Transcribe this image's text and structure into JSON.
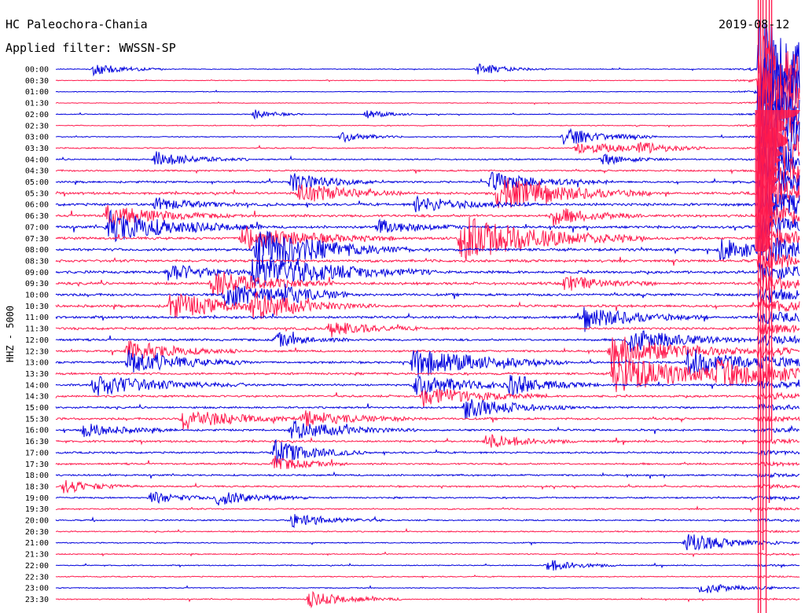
{
  "header": {
    "station": "HC Paleochora-Chania",
    "filter": "Applied filter: WWSSN-SP",
    "date": "2019-08-12"
  },
  "channel_label": "HHZ - 5000",
  "colors": {
    "blue": "#0000dd",
    "red": "#ff1a4d",
    "text": "#000000"
  },
  "chart_data": {
    "type": "line",
    "title": "",
    "ylabel": "HHZ - 5000",
    "row_labels": [
      "00:00",
      "00:30",
      "01:00",
      "01:30",
      "02:00",
      "02:30",
      "03:00",
      "03:30",
      "04:00",
      "04:30",
      "05:00",
      "05:30",
      "06:00",
      "06:30",
      "07:00",
      "07:30",
      "08:00",
      "08:30",
      "09:00",
      "09:30",
      "10:00",
      "10:30",
      "11:00",
      "11:30",
      "12:00",
      "12:30",
      "13:00",
      "13:30",
      "14:00",
      "14:30",
      "15:00",
      "15:30",
      "16:00",
      "16:30",
      "17:00",
      "17:30",
      "18:00",
      "18:30",
      "19:00",
      "19:30",
      "20:00",
      "20:30",
      "21:00",
      "21:30",
      "22:00",
      "22:30",
      "23:00",
      "23:30"
    ],
    "row_colors_cycle": [
      "blue",
      "red"
    ],
    "row_noise_level": [
      0.18,
      0.15,
      0.16,
      0.15,
      0.2,
      0.2,
      0.22,
      0.3,
      0.32,
      0.38,
      0.45,
      0.55,
      0.6,
      0.6,
      0.62,
      0.6,
      0.62,
      0.6,
      0.6,
      0.6,
      0.58,
      0.58,
      0.55,
      0.55,
      0.5,
      0.5,
      0.5,
      0.5,
      0.48,
      0.48,
      0.45,
      0.5,
      0.45,
      0.45,
      0.42,
      0.42,
      0.4,
      0.38,
      0.35,
      0.32,
      0.32,
      0.28,
      0.26,
      0.25,
      0.24,
      0.24,
      0.22,
      0.25
    ],
    "events": [
      {
        "row": 0,
        "minute": 1.5,
        "amp": 8,
        "dur": 1.2
      },
      {
        "row": 0,
        "minute": 17,
        "amp": 7,
        "dur": 1.2
      },
      {
        "row": 4,
        "minute": 8,
        "amp": 6,
        "dur": 0.8
      },
      {
        "row": 4,
        "minute": 12.5,
        "amp": 6,
        "dur": 0.8
      },
      {
        "row": 6,
        "minute": 20.5,
        "amp": 12,
        "dur": 1.5
      },
      {
        "row": 6,
        "minute": 11.5,
        "amp": 7,
        "dur": 1
      },
      {
        "row": 7,
        "minute": 21,
        "amp": 8,
        "dur": 2
      },
      {
        "row": 7,
        "minute": 23.5,
        "amp": 6,
        "dur": 1.2
      },
      {
        "row": 8,
        "minute": 4,
        "amp": 10,
        "dur": 1.5
      },
      {
        "row": 8,
        "minute": 22,
        "amp": 7,
        "dur": 1.2
      },
      {
        "row": 10,
        "minute": 9.5,
        "amp": 12,
        "dur": 1.5
      },
      {
        "row": 10,
        "minute": 17.5,
        "amp": 12,
        "dur": 2
      },
      {
        "row": 11,
        "minute": 17.8,
        "amp": 22,
        "dur": 2.5
      },
      {
        "row": 11,
        "minute": 9.8,
        "amp": 14,
        "dur": 1.8
      },
      {
        "row": 12,
        "minute": 14.5,
        "amp": 10,
        "dur": 2
      },
      {
        "row": 12,
        "minute": 4,
        "amp": 8,
        "dur": 1.5
      },
      {
        "row": 13,
        "minute": 2,
        "amp": 14,
        "dur": 2
      },
      {
        "row": 13,
        "minute": 20,
        "amp": 12,
        "dur": 1.5
      },
      {
        "row": 14,
        "minute": 2.1,
        "amp": 20,
        "dur": 2.5
      },
      {
        "row": 14,
        "minute": 13,
        "amp": 9,
        "dur": 1.5
      },
      {
        "row": 15,
        "minute": 16.3,
        "amp": 30,
        "dur": 3
      },
      {
        "row": 15,
        "minute": 7.5,
        "amp": 16,
        "dur": 2.5
      },
      {
        "row": 16,
        "minute": 8.1,
        "amp": 28,
        "dur": 2.5
      },
      {
        "row": 16,
        "minute": 26.8,
        "amp": 14,
        "dur": 1.8
      },
      {
        "row": 18,
        "minute": 7.9,
        "amp": 24,
        "dur": 3
      },
      {
        "row": 18,
        "minute": 4.5,
        "amp": 12,
        "dur": 1.5
      },
      {
        "row": 19,
        "minute": 6.3,
        "amp": 18,
        "dur": 2
      },
      {
        "row": 19,
        "minute": 20.5,
        "amp": 10,
        "dur": 1.5
      },
      {
        "row": 20,
        "minute": 6.8,
        "amp": 16,
        "dur": 2
      },
      {
        "row": 20,
        "minute": 9,
        "amp": 10,
        "dur": 1.2
      },
      {
        "row": 21,
        "minute": 4.6,
        "amp": 18,
        "dur": 2
      },
      {
        "row": 21,
        "minute": 7.9,
        "amp": 16,
        "dur": 2
      },
      {
        "row": 22,
        "minute": 21.3,
        "amp": 14,
        "dur": 2
      },
      {
        "row": 23,
        "minute": 11,
        "amp": 10,
        "dur": 1.5
      },
      {
        "row": 24,
        "minute": 23.1,
        "amp": 16,
        "dur": 2
      },
      {
        "row": 24,
        "minute": 8.9,
        "amp": 9,
        "dur": 1.2
      },
      {
        "row": 25,
        "minute": 2.9,
        "amp": 14,
        "dur": 1.8
      },
      {
        "row": 25,
        "minute": 22.4,
        "amp": 22,
        "dur": 2.5
      },
      {
        "row": 26,
        "minute": 2.9,
        "amp": 16,
        "dur": 2
      },
      {
        "row": 26,
        "minute": 14.4,
        "amp": 20,
        "dur": 2.5
      },
      {
        "row": 26,
        "minute": 25.5,
        "amp": 18,
        "dur": 2
      },
      {
        "row": 27,
        "minute": 22.5,
        "amp": 26,
        "dur": 3
      },
      {
        "row": 27,
        "minute": 26.7,
        "amp": 14,
        "dur": 1.8
      },
      {
        "row": 28,
        "minute": 1.5,
        "amp": 14,
        "dur": 2.5
      },
      {
        "row": 28,
        "minute": 14.5,
        "amp": 14,
        "dur": 2
      },
      {
        "row": 28,
        "minute": 18.3,
        "amp": 12,
        "dur": 1.5
      },
      {
        "row": 29,
        "minute": 14.8,
        "amp": 14,
        "dur": 2
      },
      {
        "row": 30,
        "minute": 16.5,
        "amp": 14,
        "dur": 1.8
      },
      {
        "row": 31,
        "minute": 5.1,
        "amp": 14,
        "dur": 2
      },
      {
        "row": 31,
        "minute": 10,
        "amp": 10,
        "dur": 2
      },
      {
        "row": 32,
        "minute": 9.5,
        "amp": 12,
        "dur": 2
      },
      {
        "row": 32,
        "minute": 1.1,
        "amp": 9,
        "dur": 1.5
      },
      {
        "row": 33,
        "minute": 17.3,
        "amp": 10,
        "dur": 1.5
      },
      {
        "row": 34,
        "minute": 8.8,
        "amp": 16,
        "dur": 1.5
      },
      {
        "row": 35,
        "minute": 8.8,
        "amp": 10,
        "dur": 1.2
      },
      {
        "row": 37,
        "minute": 0.3,
        "amp": 9,
        "dur": 1.2
      },
      {
        "row": 38,
        "minute": 6.5,
        "amp": 10,
        "dur": 1.5
      },
      {
        "row": 38,
        "minute": 3.8,
        "amp": 8,
        "dur": 1.2
      },
      {
        "row": 40,
        "minute": 9.5,
        "amp": 9,
        "dur": 1.5
      },
      {
        "row": 42,
        "minute": 25.4,
        "amp": 14,
        "dur": 1.5
      },
      {
        "row": 44,
        "minute": 19.8,
        "amp": 8,
        "dur": 1.2
      },
      {
        "row": 46,
        "minute": 26,
        "amp": 8,
        "dur": 1.2
      },
      {
        "row": 47,
        "minute": 10.2,
        "amp": 10,
        "dur": 1.5
      }
    ],
    "major_event": {
      "row": 0,
      "minute": 28.4,
      "amp": 500,
      "decay_rows": 10
    }
  }
}
